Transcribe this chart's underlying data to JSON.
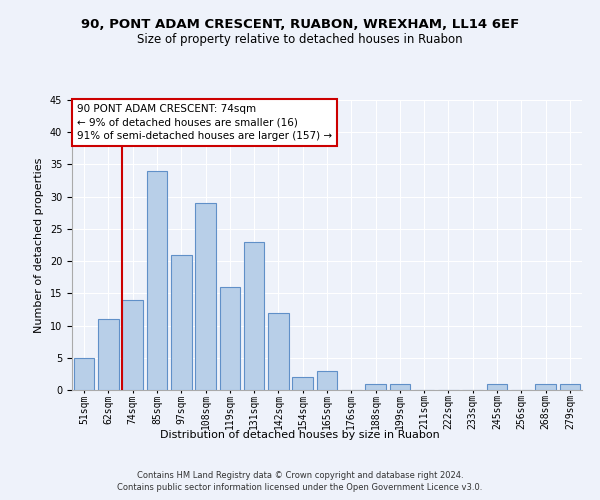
{
  "title1": "90, PONT ADAM CRESCENT, RUABON, WREXHAM, LL14 6EF",
  "title2": "Size of property relative to detached houses in Ruabon",
  "xlabel": "Distribution of detached houses by size in Ruabon",
  "ylabel": "Number of detached properties",
  "categories": [
    "51sqm",
    "62sqm",
    "74sqm",
    "85sqm",
    "97sqm",
    "108sqm",
    "119sqm",
    "131sqm",
    "142sqm",
    "154sqm",
    "165sqm",
    "176sqm",
    "188sqm",
    "199sqm",
    "211sqm",
    "222sqm",
    "233sqm",
    "245sqm",
    "256sqm",
    "268sqm",
    "279sqm"
  ],
  "values": [
    5,
    11,
    14,
    34,
    21,
    29,
    16,
    23,
    12,
    2,
    3,
    0,
    1,
    1,
    0,
    0,
    0,
    1,
    0,
    1,
    1
  ],
  "bar_color": "#b8cfe8",
  "bar_edge_color": "#6090c8",
  "highlight_index": 2,
  "highlight_line_color": "#cc0000",
  "annotation_text": "90 PONT ADAM CRESCENT: 74sqm\n← 9% of detached houses are smaller (16)\n91% of semi-detached houses are larger (157) →",
  "annotation_box_color": "#ffffff",
  "annotation_box_edge_color": "#cc0000",
  "ylim": [
    0,
    45
  ],
  "yticks": [
    0,
    5,
    10,
    15,
    20,
    25,
    30,
    35,
    40,
    45
  ],
  "footer1": "Contains HM Land Registry data © Crown copyright and database right 2024.",
  "footer2": "Contains public sector information licensed under the Open Government Licence v3.0.",
  "background_color": "#eef2fa",
  "grid_color": "#ffffff",
  "title1_fontsize": 9.5,
  "title2_fontsize": 8.5,
  "xlabel_fontsize": 8,
  "ylabel_fontsize": 8,
  "tick_fontsize": 7,
  "annotation_fontsize": 7.5,
  "footer_fontsize": 6
}
